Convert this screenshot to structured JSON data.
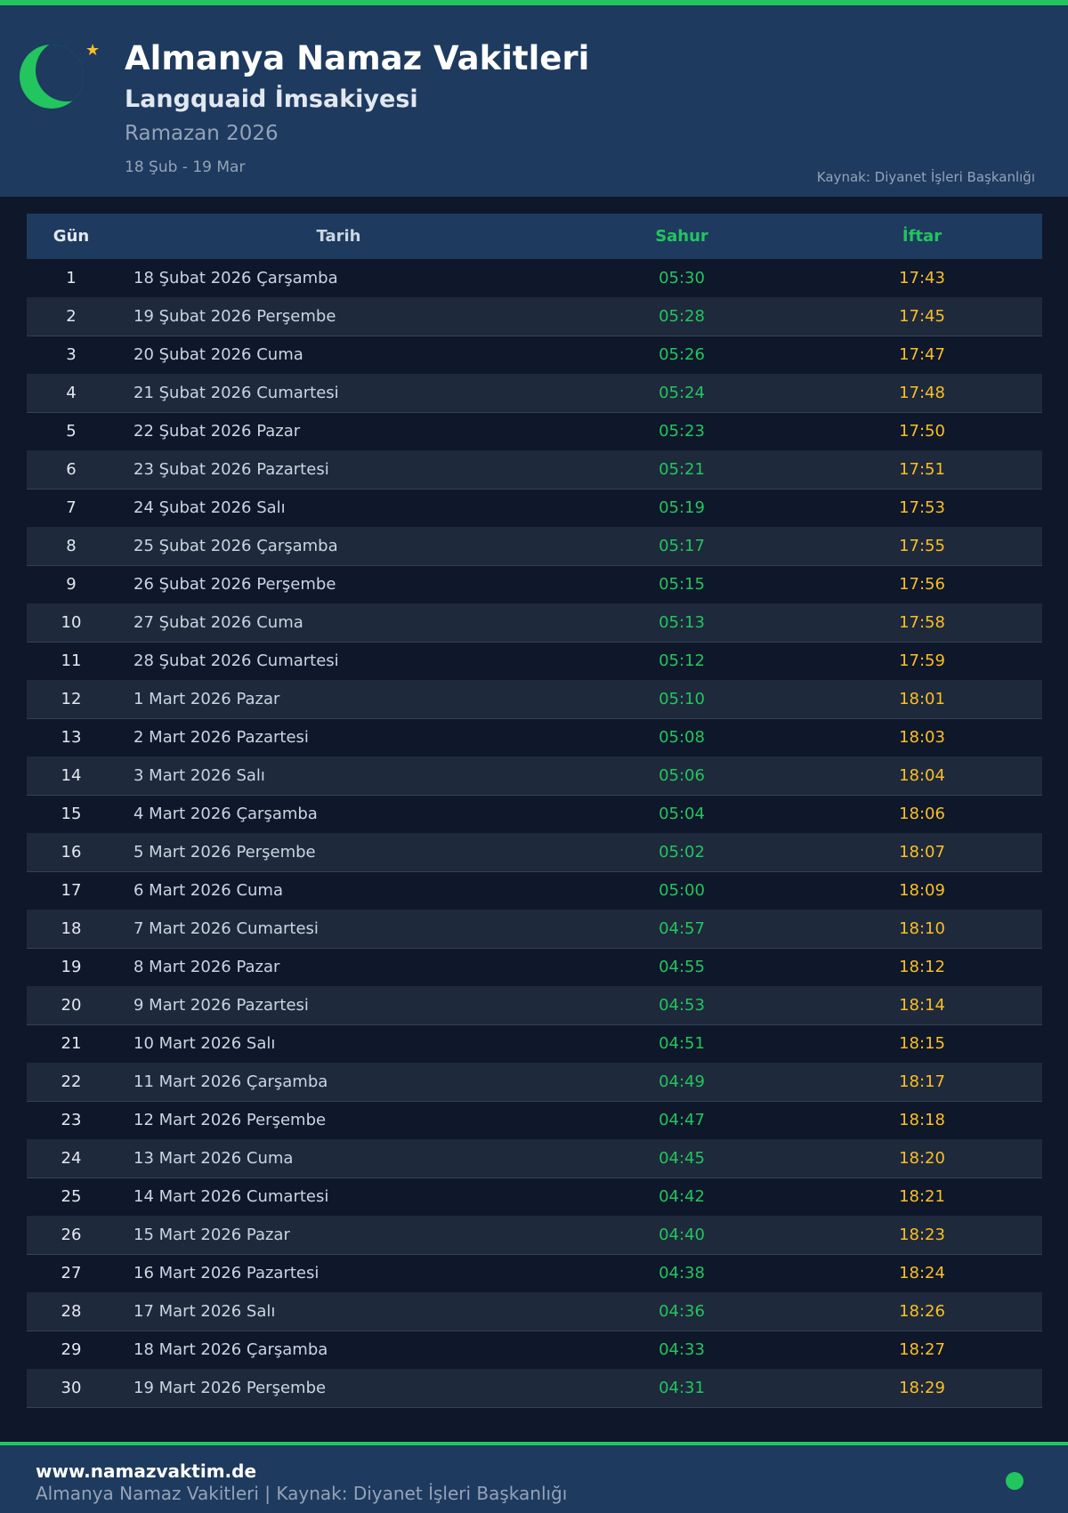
{
  "header": {
    "title": "Almanya Namaz Vakitleri",
    "subtitle": "Langquaid İmsakiyesi",
    "period": "Ramazan 2026",
    "range": "18 Şub - 19 Mar",
    "source": "Kaynak: Diyanet İşleri Başkanlığı"
  },
  "colors": {
    "accent": "#22c55e",
    "iftar": "#fbbf24",
    "header_bg": "#1e3a5f",
    "page_bg": "#0f172a"
  },
  "table": {
    "columns": [
      "Gün",
      "Tarih",
      "Sahur",
      "İftar"
    ],
    "rows": [
      [
        "1",
        "18 Şubat 2026 Çarşamba",
        "05:30",
        "17:43"
      ],
      [
        "2",
        "19 Şubat 2026 Perşembe",
        "05:28",
        "17:45"
      ],
      [
        "3",
        "20 Şubat 2026 Cuma",
        "05:26",
        "17:47"
      ],
      [
        "4",
        "21 Şubat 2026 Cumartesi",
        "05:24",
        "17:48"
      ],
      [
        "5",
        "22 Şubat 2026 Pazar",
        "05:23",
        "17:50"
      ],
      [
        "6",
        "23 Şubat 2026 Pazartesi",
        "05:21",
        "17:51"
      ],
      [
        "7",
        "24 Şubat 2026 Salı",
        "05:19",
        "17:53"
      ],
      [
        "8",
        "25 Şubat 2026 Çarşamba",
        "05:17",
        "17:55"
      ],
      [
        "9",
        "26 Şubat 2026 Perşembe",
        "05:15",
        "17:56"
      ],
      [
        "10",
        "27 Şubat 2026 Cuma",
        "05:13",
        "17:58"
      ],
      [
        "11",
        "28 Şubat 2026 Cumartesi",
        "05:12",
        "17:59"
      ],
      [
        "12",
        "1 Mart 2026 Pazar",
        "05:10",
        "18:01"
      ],
      [
        "13",
        "2 Mart 2026 Pazartesi",
        "05:08",
        "18:03"
      ],
      [
        "14",
        "3 Mart 2026 Salı",
        "05:06",
        "18:04"
      ],
      [
        "15",
        "4 Mart 2026 Çarşamba",
        "05:04",
        "18:06"
      ],
      [
        "16",
        "5 Mart 2026 Perşembe",
        "05:02",
        "18:07"
      ],
      [
        "17",
        "6 Mart 2026 Cuma",
        "05:00",
        "18:09"
      ],
      [
        "18",
        "7 Mart 2026 Cumartesi",
        "04:57",
        "18:10"
      ],
      [
        "19",
        "8 Mart 2026 Pazar",
        "04:55",
        "18:12"
      ],
      [
        "20",
        "9 Mart 2026 Pazartesi",
        "04:53",
        "18:14"
      ],
      [
        "21",
        "10 Mart 2026 Salı",
        "04:51",
        "18:15"
      ],
      [
        "22",
        "11 Mart 2026 Çarşamba",
        "04:49",
        "18:17"
      ],
      [
        "23",
        "12 Mart 2026 Perşembe",
        "04:47",
        "18:18"
      ],
      [
        "24",
        "13 Mart 2026 Cuma",
        "04:45",
        "18:20"
      ],
      [
        "25",
        "14 Mart 2026 Cumartesi",
        "04:42",
        "18:21"
      ],
      [
        "26",
        "15 Mart 2026 Pazar",
        "04:40",
        "18:23"
      ],
      [
        "27",
        "16 Mart 2026 Pazartesi",
        "04:38",
        "18:24"
      ],
      [
        "28",
        "17 Mart 2026 Salı",
        "04:36",
        "18:26"
      ],
      [
        "29",
        "18 Mart 2026 Çarşamba",
        "04:33",
        "18:27"
      ],
      [
        "30",
        "19 Mart 2026 Perşembe",
        "04:31",
        "18:29"
      ]
    ]
  },
  "footer": {
    "site": "www.namazvaktim.de",
    "text": "Almanya Namaz Vakitleri | Kaynak: Diyanet İşleri Başkanlığı"
  }
}
